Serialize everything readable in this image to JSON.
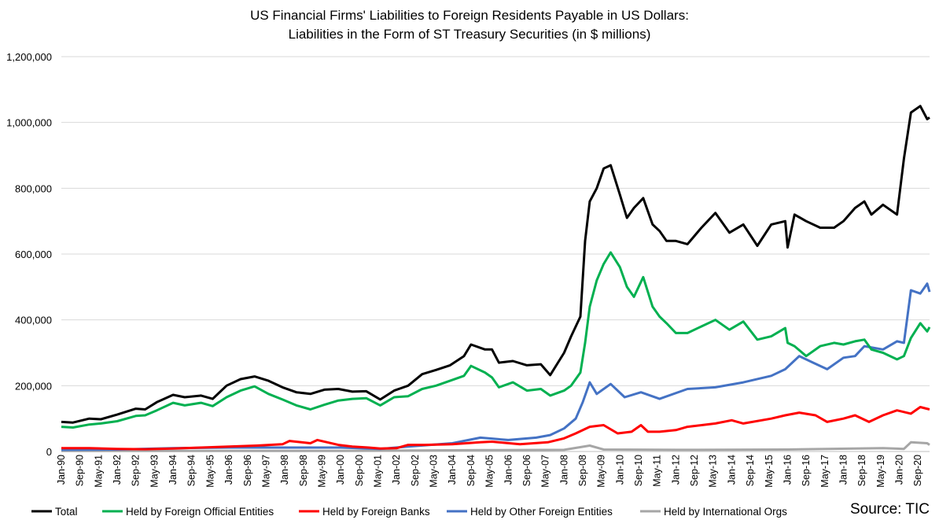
{
  "chart_data": {
    "type": "line",
    "title_line_1": "US Financial Firms' Liabilities to Foreign Residents Payable in US Dollars:",
    "title_line_2": "Liabilities in the Form of ST Treasury Securities (in $ millions)",
    "source": "Source: TIC",
    "ylim": [
      0,
      1200000
    ],
    "yticks": [
      0,
      200000,
      400000,
      600000,
      800000,
      1000000,
      1200000
    ],
    "ytick_labels": [
      "0",
      "200,000",
      "400,000",
      "600,000",
      "800,000",
      "1,000,000",
      "1,200,000"
    ],
    "x_start": "1990-01",
    "x_end": "2021-02",
    "xtick_labels": [
      "Jan-90",
      "Sep-90",
      "May-91",
      "Jan-92",
      "Sep-92",
      "May-93",
      "Jan-94",
      "Sep-94",
      "May-95",
      "Jan-96",
      "Sep-96",
      "May-97",
      "Jan-98",
      "Sep-98",
      "May-99",
      "Jan-00",
      "Sep-00",
      "May-01",
      "Jan-02",
      "Sep-02",
      "May-03",
      "Jan-04",
      "Sep-04",
      "May-05",
      "Jan-06",
      "Sep-06",
      "May-07",
      "Jan-08",
      "Sep-08",
      "May-09",
      "Jan-10",
      "Sep-10",
      "May-11",
      "Jan-12",
      "Sep-12",
      "May-13",
      "Jan-14",
      "Sep-14",
      "May-15",
      "Jan-16",
      "Sep-16",
      "May-17",
      "Jan-18",
      "Sep-18",
      "May-19",
      "Jan-20",
      "Sep-20"
    ],
    "grid": true,
    "legend_position": "bottom",
    "series": [
      {
        "name": "Total",
        "color": "#000000",
        "points": [
          [
            "1990-01",
            90000
          ],
          [
            "1990-06",
            88000
          ],
          [
            "1991-01",
            100000
          ],
          [
            "1991-06",
            98000
          ],
          [
            "1992-01",
            112000
          ],
          [
            "1992-09",
            130000
          ],
          [
            "1993-01",
            128000
          ],
          [
            "1993-06",
            150000
          ],
          [
            "1994-01",
            172000
          ],
          [
            "1994-06",
            165000
          ],
          [
            "1995-01",
            170000
          ],
          [
            "1995-06",
            160000
          ],
          [
            "1995-12",
            200000
          ],
          [
            "1996-06",
            220000
          ],
          [
            "1996-12",
            228000
          ],
          [
            "1997-06",
            215000
          ],
          [
            "1997-12",
            195000
          ],
          [
            "1998-06",
            180000
          ],
          [
            "1998-12",
            175000
          ],
          [
            "1999-06",
            188000
          ],
          [
            "1999-12",
            190000
          ],
          [
            "2000-06",
            182000
          ],
          [
            "2000-12",
            183000
          ],
          [
            "2001-06",
            158000
          ],
          [
            "2001-12",
            185000
          ],
          [
            "2002-06",
            200000
          ],
          [
            "2002-12",
            235000
          ],
          [
            "2003-06",
            248000
          ],
          [
            "2003-12",
            262000
          ],
          [
            "2004-06",
            290000
          ],
          [
            "2004-09",
            325000
          ],
          [
            "2005-03",
            310000
          ],
          [
            "2005-06",
            310000
          ],
          [
            "2005-09",
            270000
          ],
          [
            "2006-03",
            275000
          ],
          [
            "2006-09",
            262000
          ],
          [
            "2007-03",
            265000
          ],
          [
            "2007-07",
            232000
          ],
          [
            "2008-01",
            300000
          ],
          [
            "2008-04",
            350000
          ],
          [
            "2008-08",
            410000
          ],
          [
            "2008-10",
            640000
          ],
          [
            "2008-12",
            760000
          ],
          [
            "2009-03",
            800000
          ],
          [
            "2009-06",
            860000
          ],
          [
            "2009-09",
            870000
          ],
          [
            "2010-01",
            780000
          ],
          [
            "2010-04",
            710000
          ],
          [
            "2010-07",
            740000
          ],
          [
            "2010-11",
            770000
          ],
          [
            "2011-03",
            690000
          ],
          [
            "2011-06",
            670000
          ],
          [
            "2011-09",
            640000
          ],
          [
            "2012-01",
            640000
          ],
          [
            "2012-06",
            630000
          ],
          [
            "2012-12",
            680000
          ],
          [
            "2013-06",
            725000
          ],
          [
            "2013-12",
            665000
          ],
          [
            "2014-06",
            690000
          ],
          [
            "2014-12",
            625000
          ],
          [
            "2015-06",
            690000
          ],
          [
            "2015-12",
            700000
          ],
          [
            "2016-01",
            620000
          ],
          [
            "2016-04",
            720000
          ],
          [
            "2016-09",
            700000
          ],
          [
            "2017-03",
            680000
          ],
          [
            "2017-09",
            680000
          ],
          [
            "2018-01",
            700000
          ],
          [
            "2018-06",
            740000
          ],
          [
            "2018-10",
            760000
          ],
          [
            "2019-01",
            720000
          ],
          [
            "2019-06",
            750000
          ],
          [
            "2019-12",
            720000
          ],
          [
            "2020-03",
            890000
          ],
          [
            "2020-06",
            1030000
          ],
          [
            "2020-10",
            1050000
          ],
          [
            "2021-01",
            1010000
          ],
          [
            "2021-02",
            1015000
          ]
        ]
      },
      {
        "name": "Held by Foreign Official Entities",
        "color": "#00b050",
        "points": [
          [
            "1990-01",
            75000
          ],
          [
            "1990-06",
            73000
          ],
          [
            "1991-01",
            82000
          ],
          [
            "1991-06",
            85000
          ],
          [
            "1992-01",
            92000
          ],
          [
            "1992-09",
            108000
          ],
          [
            "1993-01",
            110000
          ],
          [
            "1993-06",
            125000
          ],
          [
            "1994-01",
            148000
          ],
          [
            "1994-06",
            140000
          ],
          [
            "1995-01",
            148000
          ],
          [
            "1995-06",
            138000
          ],
          [
            "1995-12",
            165000
          ],
          [
            "1996-06",
            185000
          ],
          [
            "1996-12",
            198000
          ],
          [
            "1997-06",
            175000
          ],
          [
            "1997-12",
            158000
          ],
          [
            "1998-06",
            140000
          ],
          [
            "1998-12",
            128000
          ],
          [
            "1999-06",
            142000
          ],
          [
            "1999-12",
            155000
          ],
          [
            "2000-06",
            160000
          ],
          [
            "2000-12",
            162000
          ],
          [
            "2001-06",
            140000
          ],
          [
            "2001-12",
            165000
          ],
          [
            "2002-06",
            168000
          ],
          [
            "2002-12",
            190000
          ],
          [
            "2003-06",
            200000
          ],
          [
            "2003-12",
            215000
          ],
          [
            "2004-06",
            230000
          ],
          [
            "2004-09",
            260000
          ],
          [
            "2005-03",
            240000
          ],
          [
            "2005-06",
            225000
          ],
          [
            "2005-09",
            195000
          ],
          [
            "2006-03",
            210000
          ],
          [
            "2006-09",
            185000
          ],
          [
            "2007-03",
            190000
          ],
          [
            "2007-07",
            170000
          ],
          [
            "2008-01",
            185000
          ],
          [
            "2008-04",
            200000
          ],
          [
            "2008-08",
            240000
          ],
          [
            "2008-10",
            330000
          ],
          [
            "2008-12",
            440000
          ],
          [
            "2009-03",
            520000
          ],
          [
            "2009-06",
            570000
          ],
          [
            "2009-09",
            605000
          ],
          [
            "2010-01",
            560000
          ],
          [
            "2010-04",
            500000
          ],
          [
            "2010-07",
            470000
          ],
          [
            "2010-11",
            530000
          ],
          [
            "2011-03",
            440000
          ],
          [
            "2011-06",
            410000
          ],
          [
            "2011-09",
            390000
          ],
          [
            "2012-01",
            360000
          ],
          [
            "2012-06",
            360000
          ],
          [
            "2012-12",
            380000
          ],
          [
            "2013-06",
            400000
          ],
          [
            "2013-12",
            370000
          ],
          [
            "2014-06",
            395000
          ],
          [
            "2014-12",
            340000
          ],
          [
            "2015-06",
            350000
          ],
          [
            "2015-12",
            375000
          ],
          [
            "2016-01",
            330000
          ],
          [
            "2016-04",
            320000
          ],
          [
            "2016-09",
            290000
          ],
          [
            "2017-03",
            320000
          ],
          [
            "2017-09",
            330000
          ],
          [
            "2018-01",
            325000
          ],
          [
            "2018-06",
            335000
          ],
          [
            "2018-10",
            340000
          ],
          [
            "2019-01",
            310000
          ],
          [
            "2019-06",
            300000
          ],
          [
            "2019-12",
            280000
          ],
          [
            "2020-03",
            290000
          ],
          [
            "2020-06",
            345000
          ],
          [
            "2020-10",
            390000
          ],
          [
            "2021-01",
            365000
          ],
          [
            "2021-02",
            378000
          ]
        ]
      },
      {
        "name": "Held by Foreign Banks",
        "color": "#ff0000",
        "points": [
          [
            "1990-01",
            10000
          ],
          [
            "1991-01",
            10000
          ],
          [
            "1992-01",
            8000
          ],
          [
            "1993-01",
            7000
          ],
          [
            "1994-01",
            9000
          ],
          [
            "1995-01",
            12000
          ],
          [
            "1996-01",
            15000
          ],
          [
            "1997-01",
            18000
          ],
          [
            "1997-12",
            22000
          ],
          [
            "1998-03",
            32000
          ],
          [
            "1998-12",
            25000
          ],
          [
            "1999-03",
            35000
          ],
          [
            "1999-12",
            20000
          ],
          [
            "2000-06",
            15000
          ],
          [
            "2001-01",
            12000
          ],
          [
            "2001-06",
            9000
          ],
          [
            "2002-01",
            10000
          ],
          [
            "2002-06",
            20000
          ],
          [
            "2003-01",
            20000
          ],
          [
            "2004-01",
            22000
          ],
          [
            "2005-01",
            28000
          ],
          [
            "2005-06",
            30000
          ],
          [
            "2006-06",
            22000
          ],
          [
            "2007-06",
            28000
          ],
          [
            "2008-01",
            40000
          ],
          [
            "2008-06",
            55000
          ],
          [
            "2008-12",
            75000
          ],
          [
            "2009-06",
            80000
          ],
          [
            "2009-12",
            55000
          ],
          [
            "2010-06",
            60000
          ],
          [
            "2010-10",
            80000
          ],
          [
            "2011-01",
            60000
          ],
          [
            "2011-06",
            60000
          ],
          [
            "2012-01",
            65000
          ],
          [
            "2012-06",
            75000
          ],
          [
            "2013-06",
            85000
          ],
          [
            "2014-01",
            95000
          ],
          [
            "2014-06",
            85000
          ],
          [
            "2015-06",
            100000
          ],
          [
            "2015-12",
            110000
          ],
          [
            "2016-06",
            118000
          ],
          [
            "2017-01",
            110000
          ],
          [
            "2017-06",
            90000
          ],
          [
            "2018-01",
            100000
          ],
          [
            "2018-06",
            110000
          ],
          [
            "2018-12",
            90000
          ],
          [
            "2019-06",
            110000
          ],
          [
            "2019-12",
            125000
          ],
          [
            "2020-06",
            115000
          ],
          [
            "2020-10",
            135000
          ],
          [
            "2021-02",
            128000
          ]
        ]
      },
      {
        "name": "Held by Other Foreign Entities",
        "color": "#4472c4",
        "points": [
          [
            "1990-01",
            5000
          ],
          [
            "1992-01",
            6000
          ],
          [
            "1994-01",
            10000
          ],
          [
            "1996-01",
            12000
          ],
          [
            "1998-01",
            12000
          ],
          [
            "2000-01",
            12000
          ],
          [
            "2001-06",
            8000
          ],
          [
            "2002-06",
            15000
          ],
          [
            "2004-01",
            25000
          ],
          [
            "2005-01",
            42000
          ],
          [
            "2006-01",
            35000
          ],
          [
            "2007-01",
            42000
          ],
          [
            "2007-07",
            50000
          ],
          [
            "2008-01",
            70000
          ],
          [
            "2008-06",
            100000
          ],
          [
            "2008-09",
            150000
          ],
          [
            "2008-12",
            210000
          ],
          [
            "2009-03",
            175000
          ],
          [
            "2009-09",
            205000
          ],
          [
            "2010-03",
            165000
          ],
          [
            "2010-10",
            180000
          ],
          [
            "2011-06",
            160000
          ],
          [
            "2012-06",
            190000
          ],
          [
            "2013-06",
            195000
          ],
          [
            "2014-06",
            210000
          ],
          [
            "2015-06",
            230000
          ],
          [
            "2015-12",
            250000
          ],
          [
            "2016-06",
            290000
          ],
          [
            "2016-12",
            270000
          ],
          [
            "2017-06",
            250000
          ],
          [
            "2018-01",
            285000
          ],
          [
            "2018-06",
            290000
          ],
          [
            "2018-10",
            320000
          ],
          [
            "2019-06",
            310000
          ],
          [
            "2019-12",
            335000
          ],
          [
            "2020-03",
            330000
          ],
          [
            "2020-06",
            490000
          ],
          [
            "2020-10",
            480000
          ],
          [
            "2021-01",
            510000
          ],
          [
            "2021-02",
            485000
          ]
        ]
      },
      {
        "name": "Held by International Orgs",
        "color": "#a6a6a6",
        "points": [
          [
            "1990-01",
            2000
          ],
          [
            "2000-01",
            2000
          ],
          [
            "2005-01",
            4000
          ],
          [
            "2008-01",
            5000
          ],
          [
            "2008-12",
            18000
          ],
          [
            "2009-06",
            6000
          ],
          [
            "2012-01",
            5000
          ],
          [
            "2016-01",
            6000
          ],
          [
            "2019-06",
            10000
          ],
          [
            "2020-03",
            8000
          ],
          [
            "2020-06",
            28000
          ],
          [
            "2021-01",
            25000
          ],
          [
            "2021-02",
            20000
          ]
        ]
      }
    ]
  }
}
